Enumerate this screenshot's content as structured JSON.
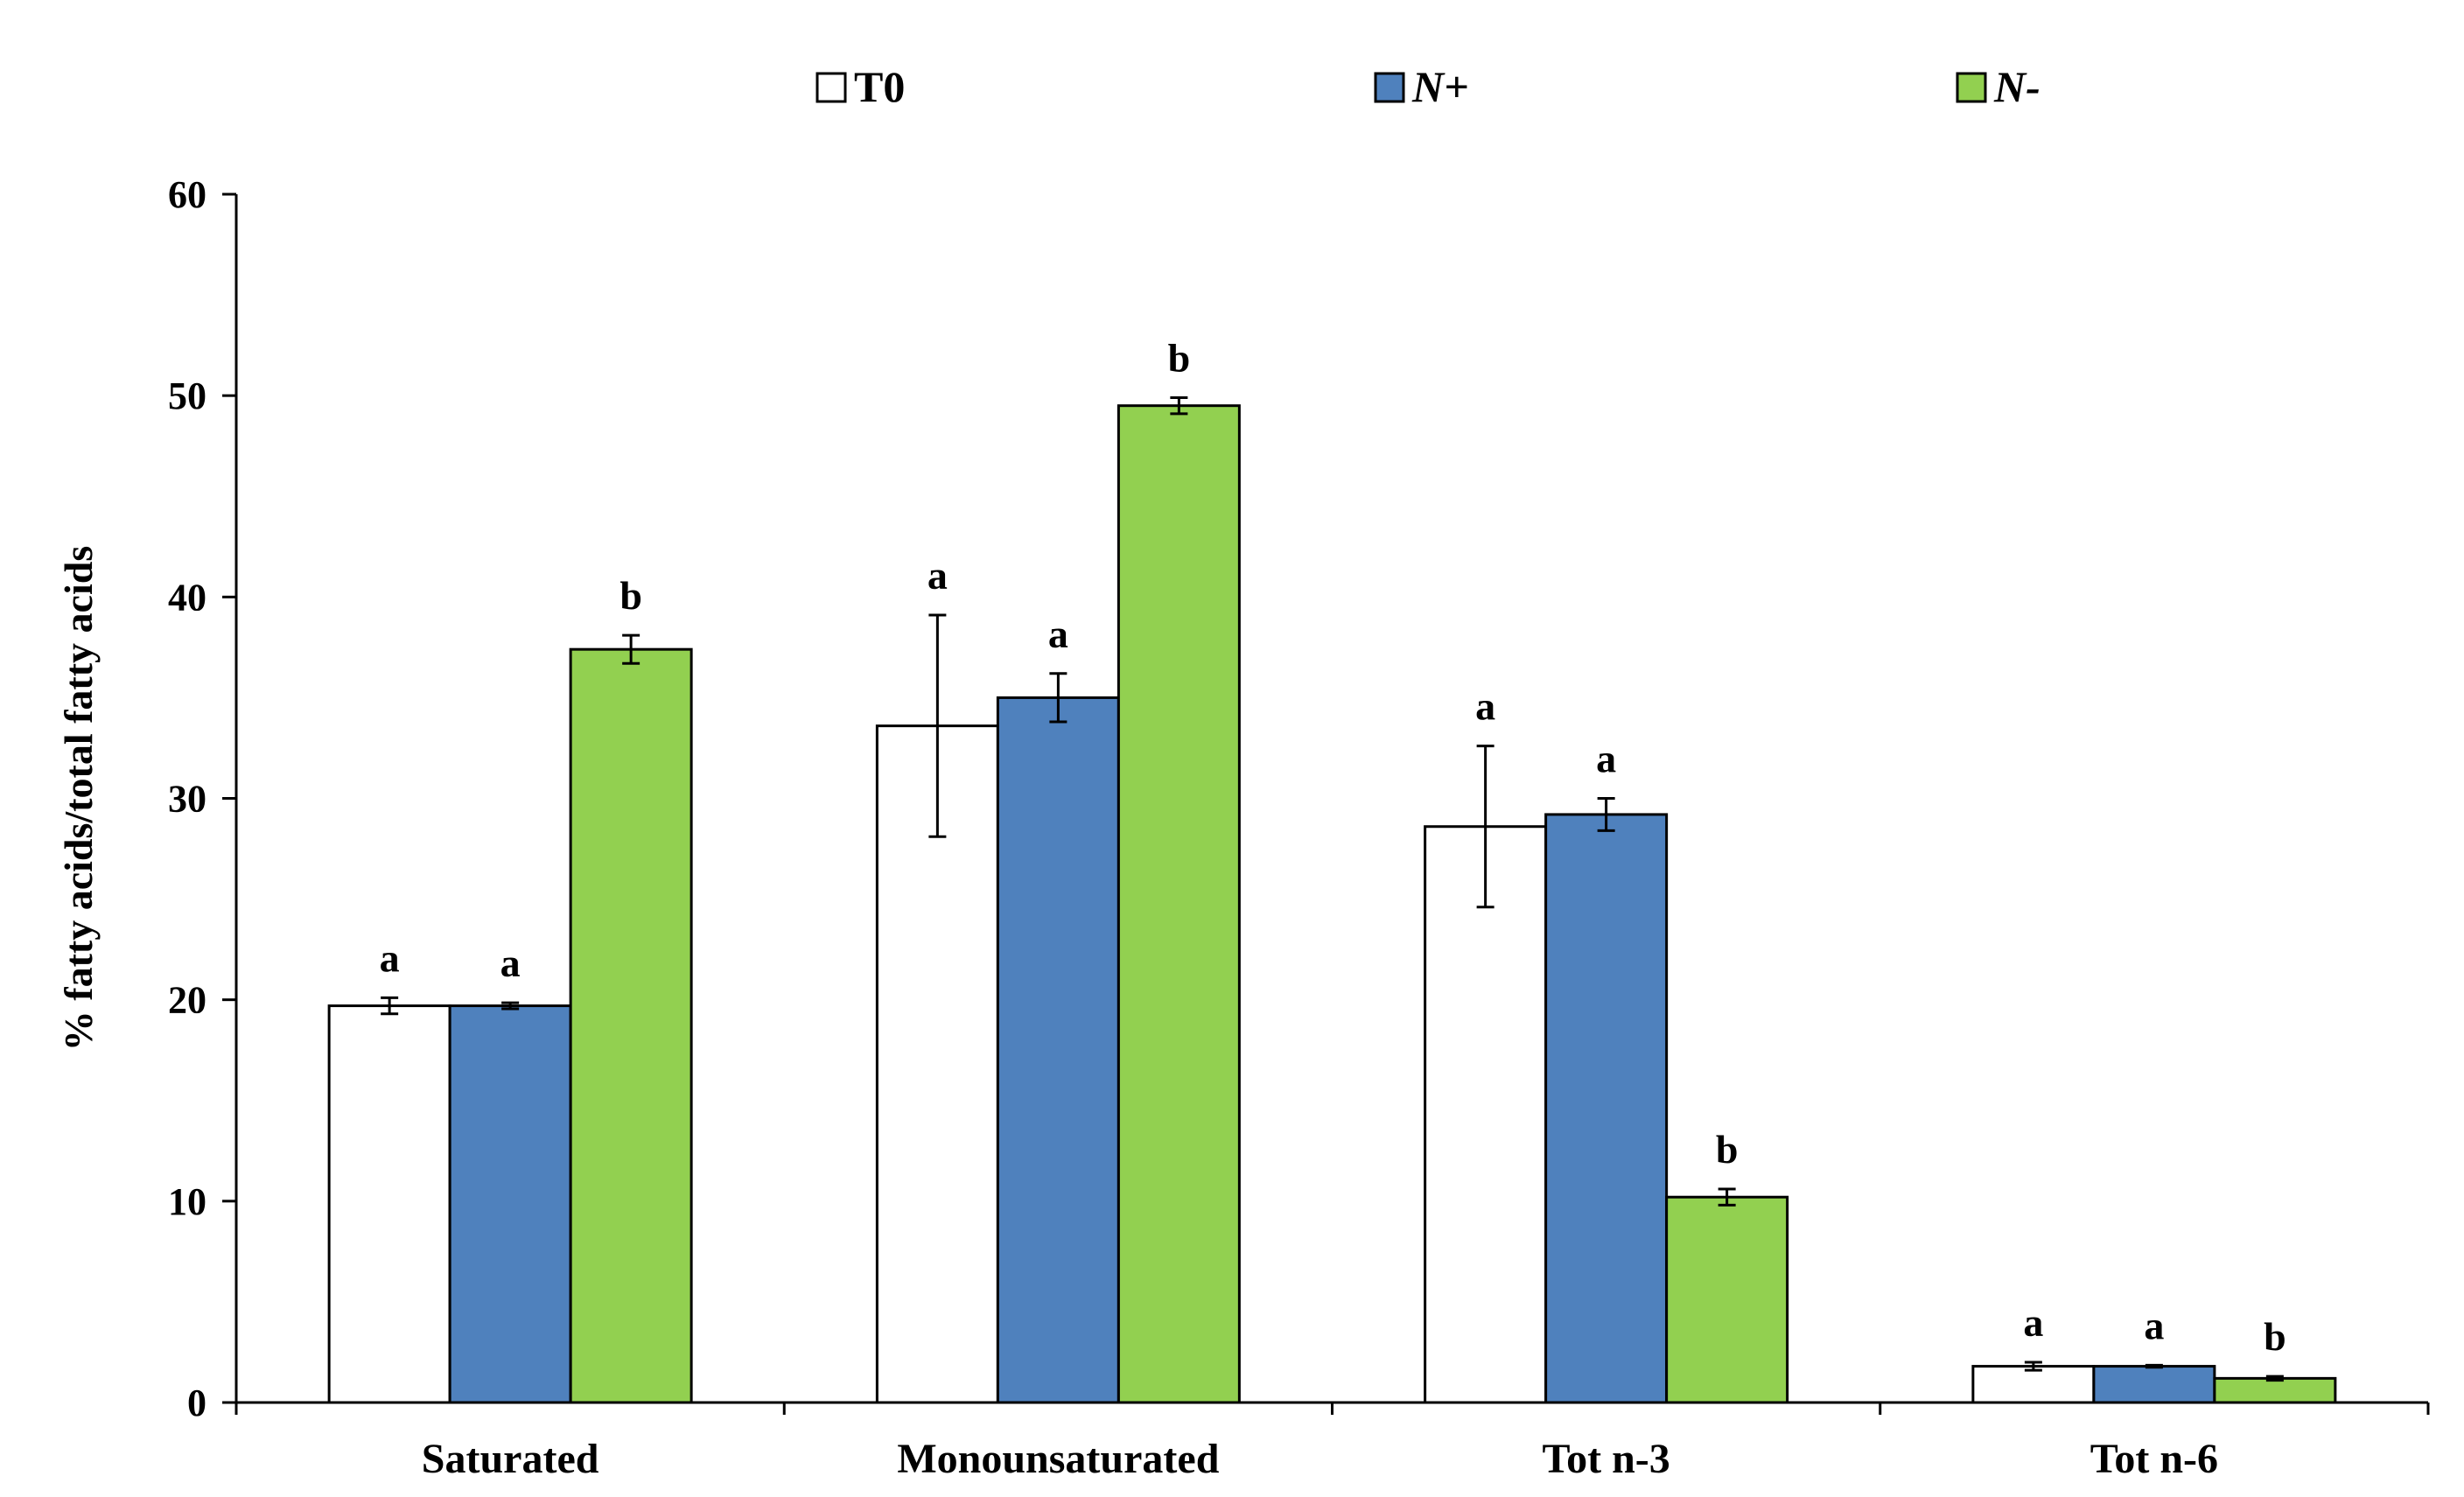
{
  "chart_data": {
    "type": "bar",
    "title": "",
    "xlabel": "",
    "ylabel": "% fatty acids/total fatty acids",
    "ylim": [
      0,
      60
    ],
    "yticks": [
      0,
      10,
      20,
      30,
      40,
      50,
      60
    ],
    "categories": [
      "Saturated",
      "Monounsaturated",
      "Tot n-3",
      "Tot n-6"
    ],
    "legend_position": "top",
    "series": [
      {
        "name": "T0",
        "italic": false,
        "color": "#ffffff",
        "values": [
          19.7,
          33.6,
          28.6,
          1.8
        ],
        "errors": [
          0.4,
          5.5,
          4.0,
          0.2
        ],
        "significance": [
          "a",
          "a",
          "a",
          "a"
        ]
      },
      {
        "name": "N+",
        "italic": true,
        "color": "#4f81bd",
        "values": [
          19.7,
          35.0,
          29.2,
          1.8
        ],
        "errors": [
          0.15,
          1.2,
          0.8,
          0.05
        ],
        "significance": [
          "a",
          "a",
          "a",
          "a"
        ]
      },
      {
        "name": "N-",
        "italic": true,
        "color": "#92d050",
        "values": [
          37.4,
          49.5,
          10.2,
          1.2
        ],
        "errors": [
          0.7,
          0.4,
          0.4,
          0.1
        ],
        "significance": [
          "b",
          "b",
          "b",
          "b"
        ]
      }
    ]
  }
}
